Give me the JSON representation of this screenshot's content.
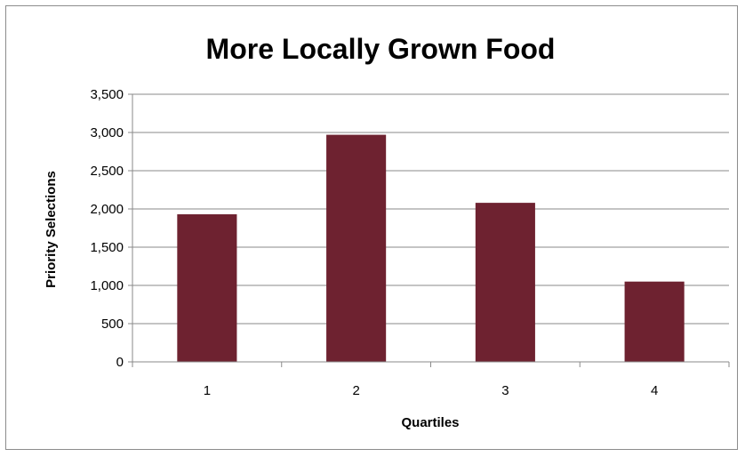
{
  "chart_data": {
    "type": "bar",
    "title": "More Locally Grown Food",
    "xlabel": "Quartiles",
    "ylabel": "Priority Selections",
    "categories": [
      "1",
      "2",
      "3",
      "4"
    ],
    "series": [
      {
        "values": [
          1930,
          2970,
          2080,
          1050
        ],
        "color": "#6e2230"
      }
    ],
    "ylim": [
      0,
      3500
    ],
    "yticks": [
      0,
      500,
      1000,
      1500,
      2000,
      2500,
      3000,
      3500
    ],
    "ytick_labels": [
      "0",
      "500",
      "1,000",
      "1,500",
      "2,000",
      "2,500",
      "3,000",
      "3,500"
    ],
    "grid": true,
    "legend": "none"
  }
}
